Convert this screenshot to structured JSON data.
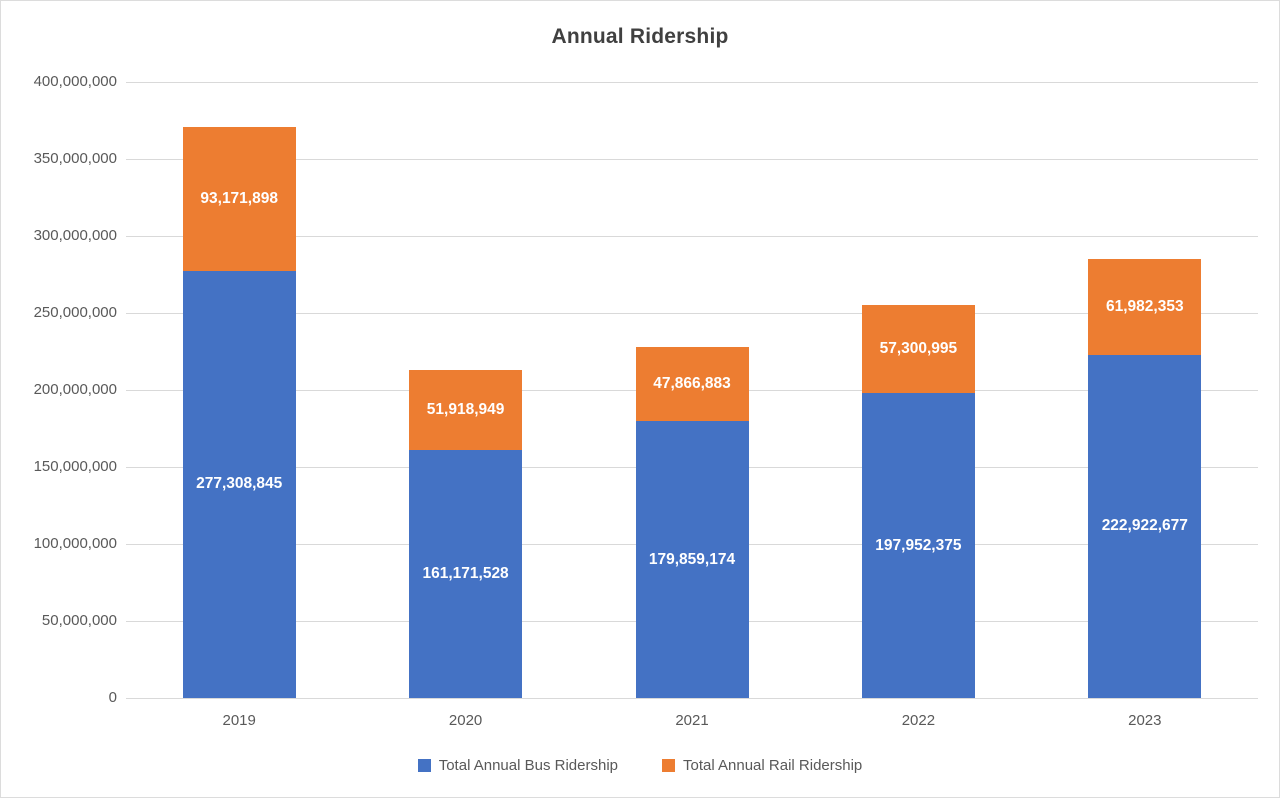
{
  "frame": {
    "background": "#ffffff",
    "border_color": "#dcdcdc"
  },
  "chart_data": {
    "type": "bar",
    "variant": "stacked",
    "title": "Annual Ridership",
    "categories": [
      "2019",
      "2020",
      "2021",
      "2022",
      "2023"
    ],
    "series": [
      {
        "name": "Total Annual Bus Ridership",
        "color": "#4472C4",
        "values": [
          277308845,
          161171528,
          179859174,
          197952375,
          222922677
        ],
        "labels": [
          "277,308,845",
          "161,171,528",
          "179,859,174",
          "197,952,375",
          "222,922,677"
        ]
      },
      {
        "name": "Total Annual Rail Ridership",
        "color": "#ED7D31",
        "values": [
          93171898,
          51918949,
          47866883,
          57300995,
          61982353
        ],
        "labels": [
          "93,171,898",
          "51,918,949",
          "47,866,883",
          "57,300,995",
          "61,982,353"
        ]
      }
    ],
    "ylim": [
      0,
      400000000
    ],
    "ytick_values": [
      0,
      50000000,
      100000000,
      150000000,
      200000000,
      250000000,
      300000000,
      350000000,
      400000000
    ],
    "ytick_labels": [
      "0",
      "50,000,000",
      "100,000,000",
      "150,000,000",
      "200,000,000",
      "250,000,000",
      "300,000,000",
      "350,000,000",
      "400,000,000"
    ],
    "grid": true,
    "gridline_color": "#d9d9d9",
    "axis_text_color": "#595959",
    "title_color": "#404040",
    "data_label_color": "#ffffff",
    "legend_position": "bottom",
    "xlabel": "",
    "ylabel": ""
  }
}
